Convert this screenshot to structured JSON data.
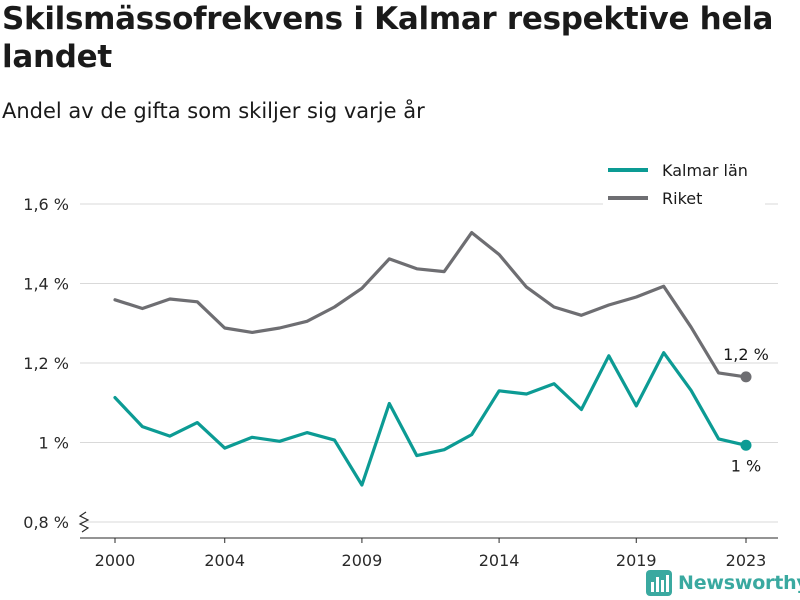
{
  "title": "Skilsmässofrekvens i Kalmar respektive hela landet",
  "subtitle": "Andel av de gifta som skiljer sig varje år",
  "brand": "Newsworthy",
  "colors": {
    "kalmar": "#0c9b94",
    "riket": "#6e6e72",
    "grid": "#d9d9d9",
    "brand": "#3aa9a0"
  },
  "chart_data": {
    "type": "line",
    "x": [
      2000,
      2001,
      2002,
      2003,
      2004,
      2005,
      2006,
      2007,
      2008,
      2009,
      2010,
      2011,
      2012,
      2013,
      2014,
      2015,
      2016,
      2017,
      2018,
      2019,
      2020,
      2021,
      2022,
      2023
    ],
    "x_ticks": [
      2000,
      2004,
      2009,
      2014,
      2019,
      2023
    ],
    "x_tick_labels": [
      "2000",
      "2004",
      "2009",
      "2014",
      "2019",
      "2023"
    ],
    "ylim": [
      0.8,
      1.65
    ],
    "y_ticks": [
      0.8,
      1.0,
      1.2,
      1.4,
      1.6
    ],
    "y_tick_labels": [
      "0,8 %",
      "1 %",
      "1,2 %",
      "1,4 %",
      "1,6 %"
    ],
    "y_axis_break": true,
    "grid": true,
    "legend_position": "top-right",
    "series": [
      {
        "name": "Kalmar län",
        "color": "#0c9b94",
        "values": [
          1.113,
          1.04,
          1.016,
          1.05,
          0.986,
          1.013,
          1.003,
          1.025,
          1.006,
          0.893,
          1.098,
          0.967,
          0.982,
          1.02,
          1.13,
          1.122,
          1.148,
          1.083,
          1.218,
          1.092,
          1.226,
          1.131,
          1.009,
          0.993
        ],
        "end_label": "1 %"
      },
      {
        "name": "Riket",
        "color": "#6e6e72",
        "values": [
          1.359,
          1.337,
          1.361,
          1.354,
          1.288,
          1.277,
          1.288,
          1.305,
          1.341,
          1.388,
          1.462,
          1.437,
          1.43,
          1.528,
          1.473,
          1.391,
          1.341,
          1.32,
          1.346,
          1.366,
          1.393,
          1.29,
          1.175,
          1.165
        ],
        "end_label": "1,2 %"
      }
    ]
  }
}
